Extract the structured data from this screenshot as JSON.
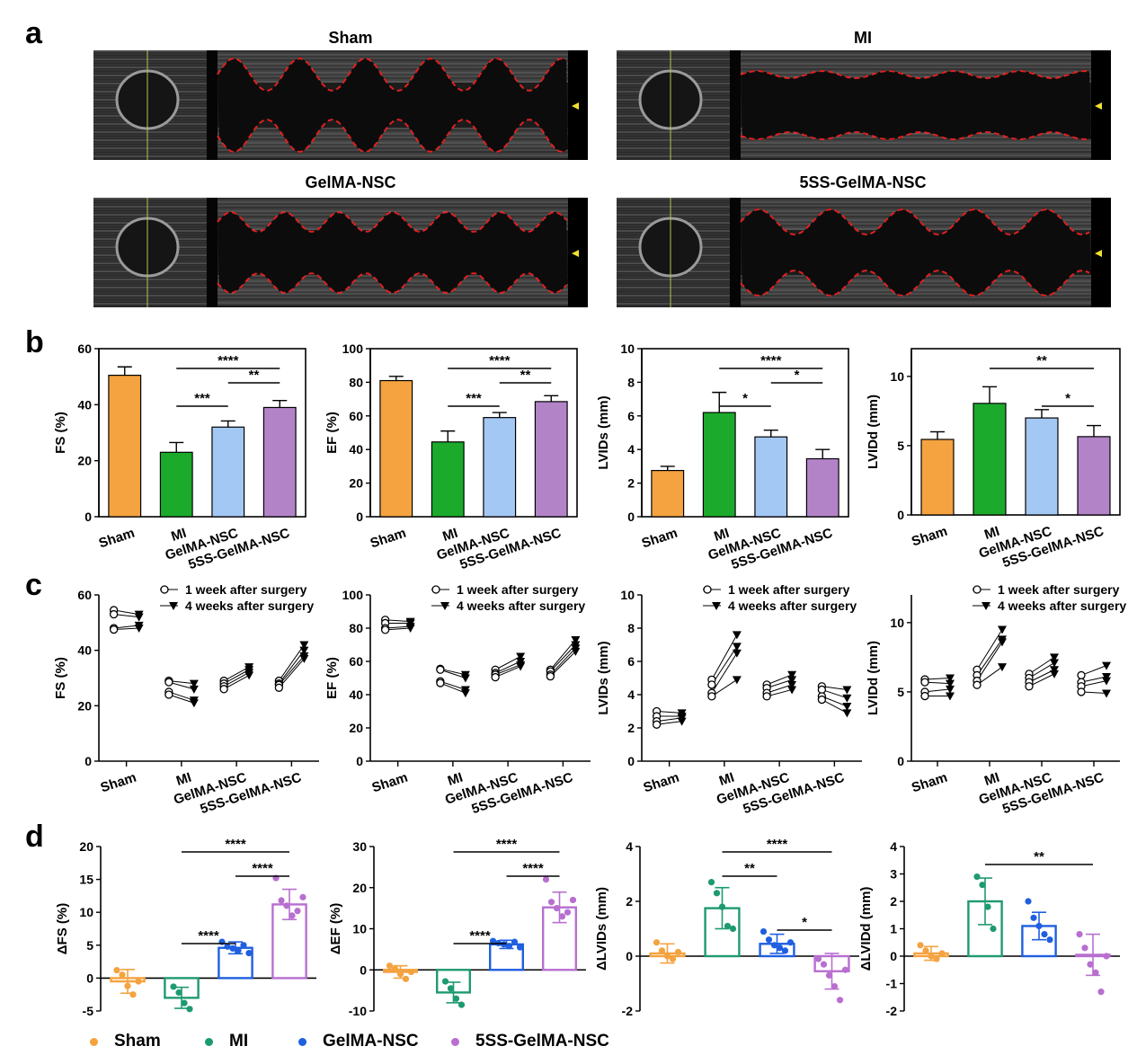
{
  "panels": {
    "a": "a",
    "b": "b",
    "c": "c",
    "d": "d"
  },
  "echo": {
    "titles": [
      "Sham",
      "MI",
      "GelMA-NSC",
      "5SS-GelMA-NSC"
    ]
  },
  "colors": {
    "Sham": "#F4A340",
    "MI": "#1BAA2B",
    "GelMA-NSC": "#A4C8F4",
    "5SS-GelMA-NSC": "#B383C8",
    "MI_dots": "#1E9A70",
    "GelMA-NSC_dots": "#1F5FE0",
    "5SS-GelMA-NSC_dots": "#B86FD0",
    "trace": "#E0201F"
  },
  "legend": {
    "items": [
      {
        "label": "Sham",
        "color": "#F4A340"
      },
      {
        "label": "MI",
        "color": "#1E9A70"
      },
      {
        "label": "GelMA-NSC",
        "color": "#1F5FE0"
      },
      {
        "label": "5SS-GelMA-NSC",
        "color": "#B86FD0"
      }
    ]
  },
  "chart_data": [
    {
      "id": "b-FS",
      "type": "bar",
      "categories": [
        "Sham",
        "MI",
        "GelMA-NSC",
        "5SS-GelMA-NSC"
      ],
      "values": [
        50.5,
        23,
        32,
        39
      ],
      "errors": [
        3,
        3.5,
        2.2,
        2.5
      ],
      "ylabel": "FS (%)",
      "ylim": [
        0,
        60
      ],
      "yticks": [
        0,
        20,
        40,
        60
      ],
      "significance": [
        {
          "from": 1,
          "to": 3,
          "label": "****"
        },
        {
          "from": 1,
          "to": 2,
          "label": "***"
        },
        {
          "from": 2,
          "to": 3,
          "label": "**"
        }
      ]
    },
    {
      "id": "b-EF",
      "type": "bar",
      "categories": [
        "Sham",
        "MI",
        "GelMA-NSC",
        "5SS-GelMA-NSC"
      ],
      "values": [
        81,
        44.5,
        59,
        68.5
      ],
      "errors": [
        2.5,
        6.5,
        3,
        3.5
      ],
      "ylabel": "EF (%)",
      "ylim": [
        0,
        100
      ],
      "yticks": [
        0,
        20,
        40,
        60,
        80,
        100
      ],
      "significance": [
        {
          "from": 1,
          "to": 3,
          "label": "****"
        },
        {
          "from": 1,
          "to": 2,
          "label": "***"
        },
        {
          "from": 2,
          "to": 3,
          "label": "**"
        }
      ]
    },
    {
      "id": "b-LVIDs",
      "type": "bar",
      "categories": [
        "Sham",
        "MI",
        "GelMA-NSC",
        "5SS-GelMA-NSC"
      ],
      "values": [
        2.75,
        6.2,
        4.75,
        3.45
      ],
      "errors": [
        0.25,
        1.2,
        0.4,
        0.55
      ],
      "ylabel": "LVIDs (mm)",
      "ylim": [
        0,
        10
      ],
      "yticks": [
        0,
        2,
        4,
        6,
        8,
        10
      ],
      "significance": [
        {
          "from": 1,
          "to": 3,
          "label": "****"
        },
        {
          "from": 1,
          "to": 2,
          "label": "*"
        },
        {
          "from": 2,
          "to": 3,
          "label": "*"
        }
      ]
    },
    {
      "id": "b-LVIDd",
      "type": "bar",
      "categories": [
        "Sham",
        "MI",
        "GelMA-NSC",
        "5SS-GelMA-NSC"
      ],
      "values": [
        5.45,
        8.05,
        7.0,
        5.65
      ],
      "errors": [
        0.55,
        1.2,
        0.6,
        0.8
      ],
      "ylabel": "LVIDd (mm)",
      "ylim": [
        0,
        12
      ],
      "yticks": [
        0,
        5,
        10
      ],
      "significance": [
        {
          "from": 1,
          "to": 3,
          "label": "**"
        },
        {
          "from": 2,
          "to": 3,
          "label": "*"
        }
      ]
    },
    {
      "id": "c-FS",
      "type": "scatter",
      "categories": [
        "Sham",
        "MI",
        "GelMA-NSC",
        "5SS-GelMA-NSC"
      ],
      "ylabel": "FS (%)",
      "ylim": [
        0,
        60
      ],
      "yticks": [
        0,
        20,
        40,
        60
      ],
      "legend": [
        "1 week after surgery",
        "4 weeks after surgery"
      ],
      "pairs": [
        [
          [
            54.5,
            53
          ],
          [
            53,
            52
          ],
          [
            48,
            49
          ],
          [
            47.5,
            48
          ]
        ],
        [
          [
            29,
            28
          ],
          [
            28.5,
            26
          ],
          [
            25,
            22
          ],
          [
            24,
            21
          ]
        ],
        [
          [
            29,
            34
          ],
          [
            28,
            33
          ],
          [
            27,
            32
          ],
          [
            26,
            31
          ]
        ],
        [
          [
            29,
            42
          ],
          [
            28,
            40
          ],
          [
            27.5,
            38
          ],
          [
            26.5,
            37
          ]
        ]
      ]
    },
    {
      "id": "c-EF",
      "type": "scatter",
      "categories": [
        "Sham",
        "MI",
        "GelMA-NSC",
        "5SS-GelMA-NSC"
      ],
      "ylabel": "EF (%)",
      "ylim": [
        0,
        100
      ],
      "yticks": [
        0,
        20,
        40,
        60,
        80,
        100
      ],
      "legend": [
        "1 week after surgery",
        "4 weeks after surgery"
      ],
      "pairs": [
        [
          [
            85,
            84
          ],
          [
            83,
            83
          ],
          [
            80,
            81
          ],
          [
            79,
            80
          ]
        ],
        [
          [
            55.5,
            52
          ],
          [
            55,
            50
          ],
          [
            48,
            43
          ],
          [
            47,
            41
          ]
        ],
        [
          [
            55,
            63
          ],
          [
            53,
            60
          ],
          [
            52,
            58
          ],
          [
            50.5,
            57
          ]
        ],
        [
          [
            55,
            73
          ],
          [
            54,
            70
          ],
          [
            52,
            68
          ],
          [
            51,
            66
          ]
        ]
      ]
    },
    {
      "id": "c-LVIDs",
      "type": "scatter",
      "categories": [
        "Sham",
        "MI",
        "GelMA-NSC",
        "5SS-GelMA-NSC"
      ],
      "ylabel": "LVIDs (mm)",
      "ylim": [
        0,
        10
      ],
      "yticks": [
        0,
        2,
        4,
        6,
        8,
        10
      ],
      "legend": [
        "1 week after surgery",
        "4 weeks after surgery"
      ],
      "pairs": [
        [
          [
            3.0,
            2.9
          ],
          [
            2.7,
            2.7
          ],
          [
            2.4,
            2.6
          ],
          [
            2.2,
            2.4
          ]
        ],
        [
          [
            4.9,
            7.6
          ],
          [
            4.6,
            6.9
          ],
          [
            4.1,
            6.5
          ],
          [
            3.9,
            4.9
          ]
        ],
        [
          [
            4.6,
            5.2
          ],
          [
            4.4,
            4.9
          ],
          [
            4.1,
            4.6
          ],
          [
            3.9,
            4.3
          ]
        ],
        [
          [
            4.5,
            4.3
          ],
          [
            4.3,
            3.8
          ],
          [
            3.9,
            3.3
          ],
          [
            3.7,
            2.9
          ]
        ]
      ]
    },
    {
      "id": "c-LVIDd",
      "type": "scatter",
      "categories": [
        "Sham",
        "MI",
        "GelMA-NSC",
        "5SS-GelMA-NSC"
      ],
      "ylabel": "LVIDd (mm)",
      "ylim": [
        0,
        12
      ],
      "yticks": [
        0,
        5,
        10
      ],
      "legend": [
        "1 week after surgery",
        "4 weeks after surgery"
      ],
      "pairs": [
        [
          [
            5.9,
            6.0
          ],
          [
            5.7,
            5.6
          ],
          [
            5.0,
            5.2
          ],
          [
            4.7,
            4.7
          ]
        ],
        [
          [
            6.6,
            9.5
          ],
          [
            6.2,
            8.8
          ],
          [
            5.8,
            8.6
          ],
          [
            5.5,
            6.8
          ]
        ],
        [
          [
            6.3,
            7.5
          ],
          [
            6.0,
            7.1
          ],
          [
            5.7,
            6.6
          ],
          [
            5.4,
            6.3
          ]
        ],
        [
          [
            6.2,
            6.9
          ],
          [
            5.7,
            6.1
          ],
          [
            5.4,
            5.8
          ],
          [
            5.0,
            4.9
          ]
        ]
      ]
    },
    {
      "id": "d-FS",
      "type": "bar",
      "categories": [
        "Sham",
        "MI",
        "GelMA-NSC",
        "5SS-GelMA-NSC"
      ],
      "values": [
        -0.5,
        -3,
        4.6,
        11.2
      ],
      "errors": [
        1.8,
        1.6,
        0.9,
        2.3
      ],
      "points": [
        [
          1.2,
          0.5,
          -1.2,
          -2.5,
          -0.5
        ],
        [
          -1.3,
          -2.2,
          -3.8,
          -4.7
        ],
        [
          5.5,
          4.8,
          4.5,
          4.2,
          5.0,
          3.8
        ],
        [
          15.2,
          11.8,
          11,
          9.5,
          10.2,
          12.3
        ]
      ],
      "ylabel": "ΔFS (%)",
      "ylim": [
        -5,
        20
      ],
      "yticks": [
        -5,
        0,
        5,
        10,
        15,
        20
      ],
      "significance": [
        {
          "from": 1,
          "to": 3,
          "label": "****"
        },
        {
          "from": 1,
          "to": 2,
          "label": "****"
        },
        {
          "from": 2,
          "to": 3,
          "label": "****"
        }
      ]
    },
    {
      "id": "d-EF",
      "type": "bar",
      "categories": [
        "Sham",
        "MI",
        "GelMA-NSC",
        "5SS-GelMA-NSC"
      ],
      "values": [
        -0.5,
        -5.5,
        6.2,
        15.2
      ],
      "errors": [
        1.5,
        2.5,
        1.0,
        3.7
      ],
      "points": [
        [
          1.0,
          0.2,
          -1.0,
          -2.2,
          -0.5
        ],
        [
          -2.8,
          -4.5,
          -7.0,
          -8.5
        ],
        [
          7.0,
          6.5,
          6.2,
          5.8,
          6.8,
          5.5
        ],
        [
          22.0,
          16.5,
          15.0,
          13.0,
          14.0,
          17.0
        ]
      ],
      "ylabel": "ΔEF (%)",
      "ylim": [
        -10,
        30
      ],
      "yticks": [
        -10,
        0,
        10,
        20,
        30
      ],
      "significance": [
        {
          "from": 1,
          "to": 3,
          "label": "****"
        },
        {
          "from": 1,
          "to": 2,
          "label": "****"
        },
        {
          "from": 2,
          "to": 3,
          "label": "****"
        }
      ]
    },
    {
      "id": "d-LVIDs",
      "type": "bar",
      "categories": [
        "Sham",
        "MI",
        "GelMA-NSC",
        "5SS-GelMA-NSC"
      ],
      "values": [
        0.1,
        1.75,
        0.45,
        -0.55
      ],
      "errors": [
        0.35,
        0.75,
        0.35,
        0.65
      ],
      "points": [
        [
          0.5,
          0.2,
          0.0,
          -0.1,
          0.15
        ],
        [
          2.7,
          2.3,
          1.8,
          1.1,
          1.0
        ],
        [
          0.9,
          0.6,
          0.4,
          0.3,
          0.2,
          0.5
        ],
        [
          -0.1,
          -0.3,
          -0.7,
          -1.1,
          -1.6,
          -0.5
        ]
      ],
      "ylabel": "ΔLVIDs (mm)",
      "ylim": [
        -2,
        4
      ],
      "yticks": [
        -2,
        0,
        2,
        4
      ],
      "significance": [
        {
          "from": 1,
          "to": 3,
          "label": "****"
        },
        {
          "from": 1,
          "to": 2,
          "label": "**"
        },
        {
          "from": 2,
          "to": 3,
          "label": "*"
        }
      ]
    },
    {
      "id": "d-LVIDd",
      "type": "bar",
      "categories": [
        "Sham",
        "MI",
        "GelMA-NSC",
        "5SS-GelMA-NSC"
      ],
      "values": [
        0.1,
        2.0,
        1.1,
        0.05
      ],
      "errors": [
        0.25,
        0.85,
        0.5,
        0.75
      ],
      "points": [
        [
          0.4,
          0.2,
          0.0,
          -0.1,
          0.1
        ],
        [
          2.9,
          2.6,
          1.8,
          1.0
        ],
        [
          2.0,
          1.4,
          1.1,
          0.8,
          0.6
        ],
        [
          0.8,
          0.3,
          -0.3,
          -0.6,
          -1.3,
          0.0
        ]
      ],
      "ylabel": "ΔLVIDd (mm)",
      "ylim": [
        -2,
        4
      ],
      "yticks": [
        -2,
        -1,
        0,
        1,
        2,
        3,
        4
      ],
      "significance": [
        {
          "from": 1,
          "to": 3,
          "label": "**"
        }
      ]
    }
  ]
}
